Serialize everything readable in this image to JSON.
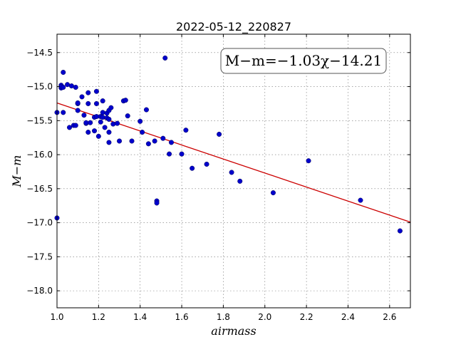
{
  "chart_data": {
    "type": "scatter",
    "title": "2022-05-12_220827",
    "xlabel": "airmass",
    "ylabel": "M−m",
    "xlim": [
      1.0,
      2.7
    ],
    "ylim": [
      -18.25,
      -14.23
    ],
    "y_inverted": true,
    "grid": true,
    "xticks": [
      1.0,
      1.2,
      1.4,
      1.6,
      1.8,
      2.0,
      2.2,
      2.4,
      2.6
    ],
    "xtick_labels": [
      "1.0",
      "1.2",
      "1.4",
      "1.6",
      "1.8",
      "2.0",
      "2.2",
      "2.4",
      "2.6"
    ],
    "yticks": [
      -14.5,
      -15.0,
      -15.5,
      -16.0,
      -16.5,
      -17.0,
      -17.5,
      -18.0
    ],
    "ytick_labels": [
      "−14.5",
      "−15.0",
      "−15.5",
      "−16.0",
      "−16.5",
      "−17.0",
      "−17.5",
      "−18.0"
    ],
    "annotation": "M−m=−1.03χ−14.21",
    "marker_color": "#0000cc",
    "fit_color": "#cc0000",
    "fit": {
      "slope": -1.03,
      "intercept": -14.21,
      "x_range": [
        1.0,
        2.7
      ]
    },
    "points": [
      [
        1.0,
        -16.93
      ],
      [
        1.0,
        -15.38
      ],
      [
        1.02,
        -14.98
      ],
      [
        1.02,
        -15.02
      ],
      [
        1.02,
        -15.0
      ],
      [
        1.03,
        -15.01
      ],
      [
        1.03,
        -14.79
      ],
      [
        1.03,
        -15.38
      ],
      [
        1.05,
        -14.97
      ],
      [
        1.06,
        -15.6
      ],
      [
        1.07,
        -14.99
      ],
      [
        1.08,
        -15.57
      ],
      [
        1.09,
        -15.57
      ],
      [
        1.09,
        -15.01
      ],
      [
        1.1,
        -15.25
      ],
      [
        1.1,
        -15.24
      ],
      [
        1.1,
        -15.35
      ],
      [
        1.12,
        -15.15
      ],
      [
        1.13,
        -15.42
      ],
      [
        1.14,
        -15.54
      ],
      [
        1.14,
        -15.53
      ],
      [
        1.15,
        -15.67
      ],
      [
        1.15,
        -15.09
      ],
      [
        1.15,
        -15.25
      ],
      [
        1.16,
        -15.53
      ],
      [
        1.18,
        -15.45
      ],
      [
        1.18,
        -15.65
      ],
      [
        1.19,
        -15.07
      ],
      [
        1.19,
        -15.44
      ],
      [
        1.19,
        -15.25
      ],
      [
        1.2,
        -15.73
      ],
      [
        1.21,
        -15.44
      ],
      [
        1.21,
        -15.52
      ],
      [
        1.22,
        -15.21
      ],
      [
        1.22,
        -15.38
      ],
      [
        1.22,
        -15.45
      ],
      [
        1.23,
        -15.6
      ],
      [
        1.24,
        -15.39
      ],
      [
        1.24,
        -15.46
      ],
      [
        1.25,
        -15.35
      ],
      [
        1.25,
        -15.48
      ],
      [
        1.25,
        -15.67
      ],
      [
        1.25,
        -15.82
      ],
      [
        1.26,
        -15.31
      ],
      [
        1.27,
        -15.55
      ],
      [
        1.29,
        -15.54
      ],
      [
        1.3,
        -15.8
      ],
      [
        1.32,
        -15.21
      ],
      [
        1.33,
        -15.2
      ],
      [
        1.34,
        -15.43
      ],
      [
        1.36,
        -15.8
      ],
      [
        1.4,
        -15.51
      ],
      [
        1.41,
        -15.67
      ],
      [
        1.43,
        -15.34
      ],
      [
        1.44,
        -15.84
      ],
      [
        1.47,
        -15.8
      ],
      [
        1.48,
        -16.68
      ],
      [
        1.48,
        -16.71
      ],
      [
        1.51,
        -15.76
      ],
      [
        1.52,
        -14.58
      ],
      [
        1.54,
        -15.99
      ],
      [
        1.55,
        -15.82
      ],
      [
        1.6,
        -15.99
      ],
      [
        1.62,
        -15.64
      ],
      [
        1.65,
        -16.2
      ],
      [
        1.72,
        -16.14
      ],
      [
        1.78,
        -15.7
      ],
      [
        1.84,
        -16.26
      ],
      [
        1.88,
        -16.39
      ],
      [
        2.04,
        -16.56
      ],
      [
        2.21,
        -16.09
      ],
      [
        2.46,
        -16.67
      ],
      [
        2.65,
        -17.12
      ]
    ]
  }
}
